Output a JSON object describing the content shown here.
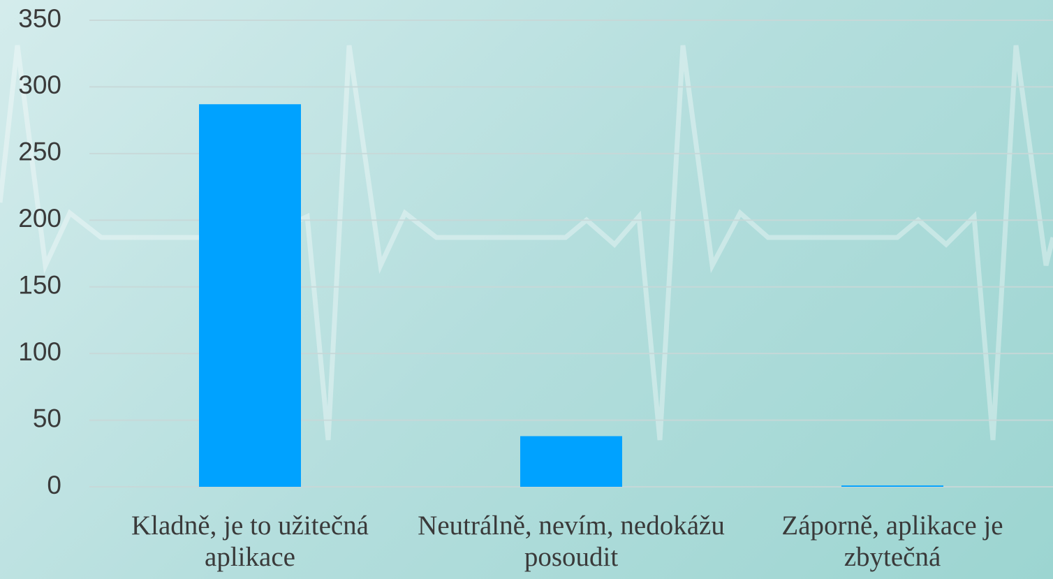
{
  "chart_data": {
    "type": "bar",
    "categories": [
      "Kladně, je to užitečná aplikace",
      "Neutrálně, nevím, nedokážu posoudit",
      "Záporně, aplikace je zbytečná"
    ],
    "values": [
      287,
      38,
      1
    ],
    "color": "#00a2ff",
    "ylim": [
      0,
      350
    ],
    "yticks": [
      0,
      50,
      100,
      150,
      200,
      250,
      300,
      350
    ],
    "grid": true
  }
}
